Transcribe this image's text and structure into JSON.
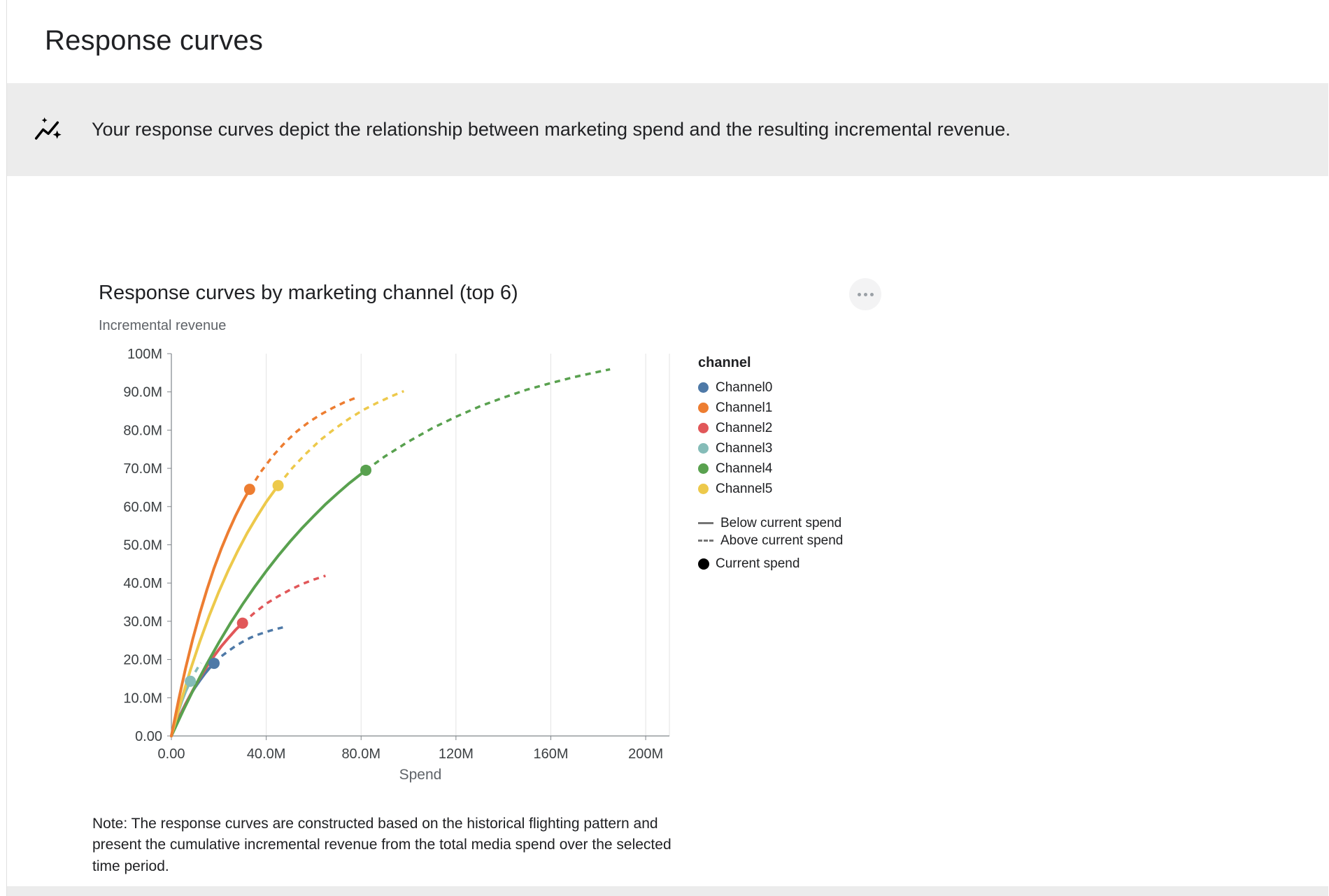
{
  "page": {
    "title": "Response curves"
  },
  "banner": {
    "text": "Your response curves depict the relationship between marketing spend and the resulting incremental revenue."
  },
  "chart": {
    "note": "Note: The response curves are constructed based on the historical flighting pattern and present the cumulative incremental revenue from the total media spend over the selected time period."
  },
  "icons": {
    "banner": "insights-sparkline-icon",
    "chart_menu": "more-horizontal-icon"
  },
  "legend": {
    "title": "channel",
    "style_items": [
      {
        "label": "Below current spend",
        "style": "solid"
      },
      {
        "label": "Above current spend",
        "style": "dashed"
      },
      {
        "label": "Current spend",
        "style": "dot"
      }
    ]
  },
  "chart_data": {
    "type": "line",
    "title": "Response curves by marketing channel (top 6)",
    "xlabel": "Spend",
    "ylabel": "Incremental revenue",
    "units": "axis values in millions (M)",
    "xlim": [
      0,
      210
    ],
    "ylim": [
      0,
      100
    ],
    "grid": "vertical gridlines only",
    "legend_position": "right",
    "x_ticks": [
      {
        "value": 0,
        "label": "0.00"
      },
      {
        "value": 40,
        "label": "40.0M"
      },
      {
        "value": 80,
        "label": "80.0M"
      },
      {
        "value": 120,
        "label": "120M"
      },
      {
        "value": 160,
        "label": "160M"
      },
      {
        "value": 200,
        "label": "200M"
      }
    ],
    "y_ticks": [
      {
        "value": 0,
        "label": "0.00"
      },
      {
        "value": 10,
        "label": "10.0M"
      },
      {
        "value": 20,
        "label": "20.0M"
      },
      {
        "value": 30,
        "label": "30.0M"
      },
      {
        "value": 40,
        "label": "40.0M"
      },
      {
        "value": 50,
        "label": "50.0M"
      },
      {
        "value": 60,
        "label": "60.0M"
      },
      {
        "value": 70,
        "label": "70.0M"
      },
      {
        "value": 80,
        "label": "80.0M"
      },
      {
        "value": 90,
        "label": "90.0M"
      },
      {
        "value": 100,
        "label": "100M"
      }
    ],
    "draw_order": [
      "Channel3",
      "Channel0",
      "Channel2",
      "Channel4",
      "Channel5",
      "Channel1"
    ],
    "series": [
      {
        "name": "Channel0",
        "color": "#4e79a7",
        "current_spend": [
          18,
          19.0
        ],
        "below_current_spend": [
          [
            0,
            0
          ],
          [
            2,
            3.1
          ],
          [
            4,
            5.9
          ],
          [
            6,
            8.4
          ],
          [
            8,
            10.7
          ],
          [
            10,
            12.7
          ],
          [
            12,
            14.5
          ],
          [
            14,
            16.2
          ],
          [
            16,
            17.7
          ],
          [
            18,
            19.0
          ]
        ],
        "above_current_spend": [
          [
            18,
            19.0
          ],
          [
            21,
            20.8
          ],
          [
            24,
            22.2
          ],
          [
            27,
            23.5
          ],
          [
            30,
            24.6
          ],
          [
            33,
            25.6
          ],
          [
            36,
            26.4
          ],
          [
            39,
            27.0
          ],
          [
            42,
            27.6
          ],
          [
            45,
            28.1
          ],
          [
            47,
            28.4
          ]
        ]
      },
      {
        "name": "Channel1",
        "color": "#ed7d31",
        "current_spend": [
          33,
          64.5
        ],
        "below_current_spend": [
          [
            0,
            0
          ],
          [
            3,
            9.3
          ],
          [
            6,
            17.7
          ],
          [
            9,
            25.3
          ],
          [
            12,
            32.1
          ],
          [
            15,
            38.3
          ],
          [
            18,
            43.9
          ],
          [
            21,
            48.9
          ],
          [
            24,
            53.4
          ],
          [
            27,
            57.5
          ],
          [
            30,
            61.2
          ],
          [
            33,
            64.5
          ]
        ],
        "above_current_spend": [
          [
            33,
            64.5
          ],
          [
            38,
            69.3
          ],
          [
            43,
            73.4
          ],
          [
            48,
            76.8
          ],
          [
            53,
            79.7
          ],
          [
            58,
            82.1
          ],
          [
            63,
            84.1
          ],
          [
            68,
            85.8
          ],
          [
            73,
            87.3
          ],
          [
            78,
            88.5
          ]
        ]
      },
      {
        "name": "Channel2",
        "color": "#e15759",
        "current_spend": [
          30,
          29.5
        ],
        "below_current_spend": [
          [
            0,
            0
          ],
          [
            3,
            4.4
          ],
          [
            6,
            8.3
          ],
          [
            9,
            11.9
          ],
          [
            12,
            15.2
          ],
          [
            15,
            18.2
          ],
          [
            18,
            20.9
          ],
          [
            21,
            23.4
          ],
          [
            24,
            25.6
          ],
          [
            27,
            27.7
          ],
          [
            30,
            29.5
          ]
        ],
        "above_current_spend": [
          [
            30,
            29.5
          ],
          [
            35,
            32.2
          ],
          [
            40,
            34.6
          ],
          [
            45,
            36.5
          ],
          [
            50,
            38.2
          ],
          [
            55,
            39.7
          ],
          [
            60,
            40.9
          ],
          [
            65,
            41.9
          ]
        ]
      },
      {
        "name": "Channel3",
        "color": "#85bcb8",
        "current_spend": [
          8,
          14.3
        ],
        "below_current_spend": [
          [
            0,
            0
          ],
          [
            1.5,
            3.4
          ],
          [
            3,
            6.5
          ],
          [
            4.5,
            9.2
          ],
          [
            6,
            11.6
          ],
          [
            8,
            14.3
          ]
        ],
        "above_current_spend": [
          [
            8,
            14.3
          ],
          [
            9.5,
            16.1
          ],
          [
            11,
            17.7
          ],
          [
            12.5,
            19.1
          ]
        ]
      },
      {
        "name": "Channel4",
        "color": "#59a14f",
        "current_spend": [
          82,
          69.5
        ],
        "below_current_spend": [
          [
            0,
            0
          ],
          [
            5,
            6.7
          ],
          [
            10,
            13.0
          ],
          [
            15,
            18.9
          ],
          [
            20,
            24.4
          ],
          [
            25,
            29.6
          ],
          [
            30,
            34.4
          ],
          [
            35,
            38.9
          ],
          [
            40,
            43.1
          ],
          [
            45,
            47.1
          ],
          [
            50,
            50.8
          ],
          [
            55,
            54.3
          ],
          [
            60,
            57.5
          ],
          [
            65,
            60.6
          ],
          [
            70,
            63.4
          ],
          [
            75,
            66.1
          ],
          [
            82,
            69.5
          ]
        ],
        "above_current_spend": [
          [
            82,
            69.5
          ],
          [
            90,
            73.1
          ],
          [
            100,
            77.0
          ],
          [
            110,
            80.5
          ],
          [
            120,
            83.5
          ],
          [
            130,
            86.2
          ],
          [
            140,
            88.5
          ],
          [
            150,
            90.6
          ],
          [
            160,
            92.3
          ],
          [
            170,
            93.9
          ],
          [
            178,
            95.0
          ],
          [
            185,
            95.9
          ]
        ]
      },
      {
        "name": "Channel5",
        "color": "#edc94b",
        "current_spend": [
          45,
          65.5
        ],
        "below_current_spend": [
          [
            0,
            0
          ],
          [
            4,
            9.0
          ],
          [
            8,
            17.2
          ],
          [
            12,
            24.7
          ],
          [
            16,
            31.5
          ],
          [
            20,
            37.7
          ],
          [
            24,
            43.3
          ],
          [
            28,
            48.4
          ],
          [
            32,
            53.1
          ],
          [
            36,
            57.3
          ],
          [
            40,
            61.2
          ],
          [
            45,
            65.5
          ]
        ],
        "above_current_spend": [
          [
            45,
            65.5
          ],
          [
            51,
            70.1
          ],
          [
            57,
            74.0
          ],
          [
            63,
            77.5
          ],
          [
            69,
            80.4
          ],
          [
            75,
            83.0
          ],
          [
            81,
            85.3
          ],
          [
            87,
            87.2
          ],
          [
            93,
            88.9
          ],
          [
            98,
            90.2
          ]
        ]
      }
    ]
  }
}
